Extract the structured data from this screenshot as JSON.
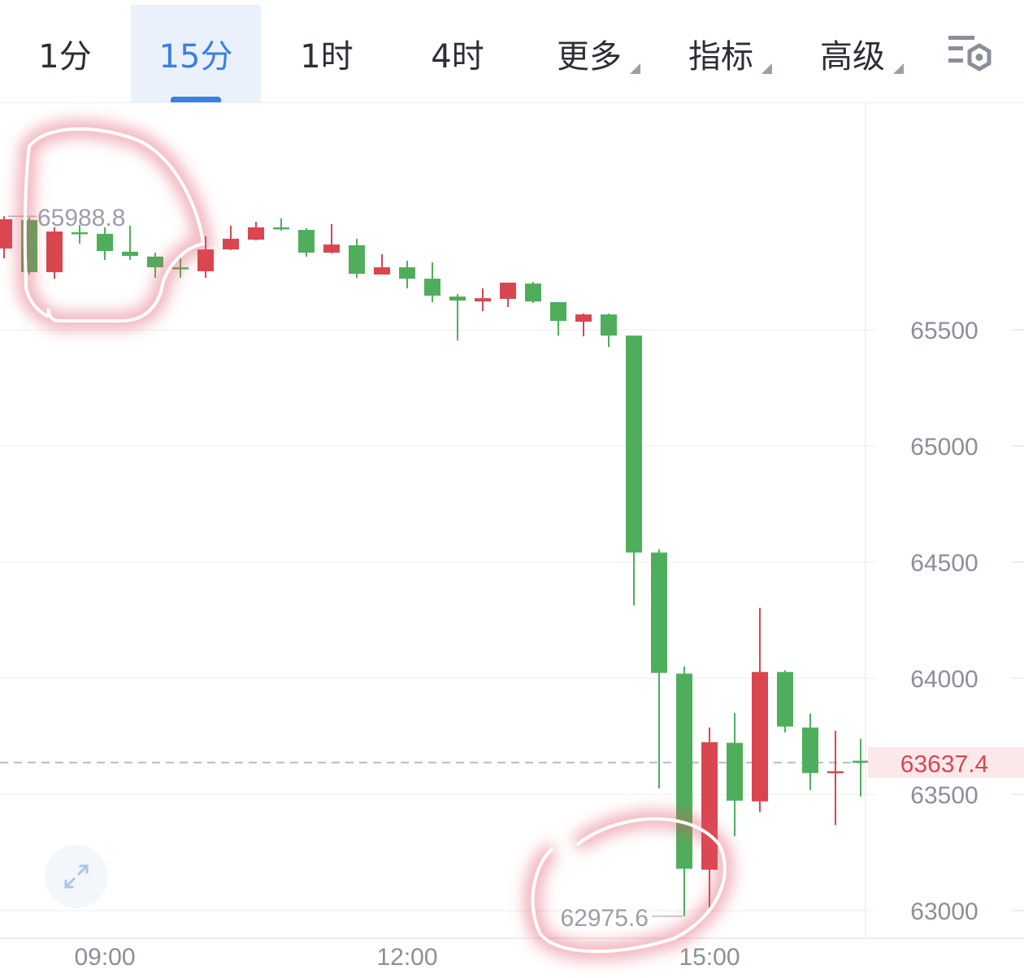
{
  "toolbar": {
    "tabs": [
      {
        "label": "1分",
        "active": false
      },
      {
        "label": "15分",
        "active": true
      },
      {
        "label": "1时",
        "active": false
      },
      {
        "label": "4时",
        "active": false
      },
      {
        "label": "更多",
        "dropdown": true
      },
      {
        "label": "指标",
        "dropdown": true
      },
      {
        "label": "高级",
        "dropdown": true
      }
    ],
    "settings_icon": "chart-settings-icon"
  },
  "expand_icon": "expand-icon",
  "colors": {
    "up": "#d9464f",
    "down": "#4fae5c",
    "accent": "#3b7fe0",
    "current_price": "#d9464f",
    "annotation_glow": "#e05563"
  },
  "chart_data": {
    "type": "candlestick",
    "interval": "15分",
    "y_ticks": [
      65500,
      65000,
      64500,
      64000,
      63500,
      63000
    ],
    "y_tick_labels": [
      "65500",
      "65000",
      "64500",
      "64000",
      "63500",
      "63000"
    ],
    "x_tick_labels": [
      {
        "label": "09:00",
        "index": 4
      },
      {
        "label": "12:00",
        "index": 16
      },
      {
        "label": "15:00",
        "index": 28
      }
    ],
    "ylim": [
      62850,
      66950
    ],
    "grid": true,
    "current_price": 63637.4,
    "current_price_label": "63637.4",
    "max_label": "65988.8",
    "max_index": 0,
    "min_label": "62975.6",
    "min_index": 27,
    "candles": [
      {
        "o": 65850,
        "h": 65988.8,
        "l": 65808,
        "c": 65976
      },
      {
        "o": 65972,
        "h": 65983,
        "l": 65738,
        "c": 65748
      },
      {
        "o": 65748,
        "h": 65941,
        "l": 65720,
        "c": 65923
      },
      {
        "o": 65920,
        "h": 65951,
        "l": 65871,
        "c": 65916
      },
      {
        "o": 65913,
        "h": 65941,
        "l": 65801,
        "c": 65839
      },
      {
        "o": 65836,
        "h": 65948,
        "l": 65801,
        "c": 65818
      },
      {
        "o": 65815,
        "h": 65832,
        "l": 65724,
        "c": 65769
      },
      {
        "o": 65769,
        "h": 65808,
        "l": 65724,
        "c": 65762
      },
      {
        "o": 65752,
        "h": 65902,
        "l": 65724,
        "c": 65846
      },
      {
        "o": 65846,
        "h": 65948,
        "l": 65843,
        "c": 65892
      },
      {
        "o": 65888,
        "h": 65965,
        "l": 65885,
        "c": 65941
      },
      {
        "o": 65941,
        "h": 65980,
        "l": 65927,
        "c": 65934
      },
      {
        "o": 65930,
        "h": 65937,
        "l": 65815,
        "c": 65832
      },
      {
        "o": 65832,
        "h": 65955,
        "l": 65829,
        "c": 65867
      },
      {
        "o": 65864,
        "h": 65892,
        "l": 65724,
        "c": 65741
      },
      {
        "o": 65738,
        "h": 65825,
        "l": 65738,
        "c": 65769
      },
      {
        "o": 65769,
        "h": 65797,
        "l": 65678,
        "c": 65720
      },
      {
        "o": 65720,
        "h": 65790,
        "l": 65619,
        "c": 65647
      },
      {
        "o": 65643,
        "h": 65654,
        "l": 65454,
        "c": 65626
      },
      {
        "o": 65622,
        "h": 65678,
        "l": 65580,
        "c": 65636
      },
      {
        "o": 65633,
        "h": 65703,
        "l": 65598,
        "c": 65703
      },
      {
        "o": 65699,
        "h": 65706,
        "l": 65615,
        "c": 65622
      },
      {
        "o": 65619,
        "h": 65619,
        "l": 65475,
        "c": 65538
      },
      {
        "o": 65535,
        "h": 65570,
        "l": 65472,
        "c": 65566
      },
      {
        "o": 65566,
        "h": 65570,
        "l": 65426,
        "c": 65475
      },
      {
        "o": 65475,
        "h": 65475,
        "l": 64313,
        "c": 64541
      },
      {
        "o": 64541,
        "h": 64555,
        "l": 63526,
        "c": 64023
      },
      {
        "o": 64020,
        "h": 64051,
        "l": 62975.6,
        "c": 63180
      },
      {
        "o": 63176,
        "h": 63788,
        "l": 63011,
        "c": 63725
      },
      {
        "o": 63722,
        "h": 63851,
        "l": 63320,
        "c": 63473
      },
      {
        "o": 63470,
        "h": 64303,
        "l": 63424,
        "c": 64027
      },
      {
        "o": 64027,
        "h": 64034,
        "l": 63767,
        "c": 63792
      },
      {
        "o": 63788,
        "h": 63848,
        "l": 63519,
        "c": 63592
      },
      {
        "o": 63592,
        "h": 63774,
        "l": 63368,
        "c": 63600
      },
      {
        "o": 63645,
        "h": 63739,
        "l": 63491,
        "c": 63637.4
      }
    ]
  }
}
